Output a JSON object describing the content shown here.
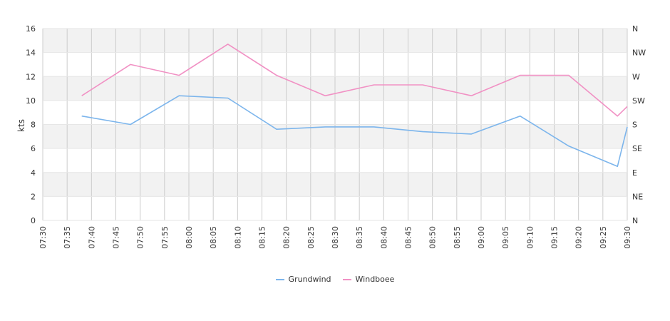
{
  "chart_data": {
    "type": "line",
    "ylabel": "kts",
    "ylim": [
      0,
      16
    ],
    "yticks": [
      "0",
      "2",
      "4",
      "6",
      "8",
      "10",
      "12",
      "14",
      "16"
    ],
    "y2ticks": [
      "N",
      "NE",
      "E",
      "SE",
      "S",
      "SW",
      "W",
      "NW",
      "N"
    ],
    "xticks": [
      "07:30",
      "07:35",
      "07:40",
      "07:45",
      "07:50",
      "07:55",
      "08:00",
      "08:05",
      "08:10",
      "08:15",
      "08:20",
      "08:25",
      "08:30",
      "08:35",
      "08:40",
      "08:45",
      "08:50",
      "08:55",
      "09:00",
      "09:05",
      "09:10",
      "09:15",
      "09:20",
      "09:25",
      "09:30"
    ],
    "xlim": [
      "07:30",
      "09:30"
    ],
    "grid": true,
    "legend_position": "bottom",
    "series": [
      {
        "name": "Grundwind",
        "color": "#7cb5ec",
        "x": [
          "07:38",
          "07:48",
          "07:58",
          "08:08",
          "08:18",
          "08:28",
          "08:38",
          "08:48",
          "08:58",
          "09:08",
          "09:18",
          "09:28",
          "09:30"
        ],
        "values": [
          8.7,
          8.0,
          10.4,
          10.2,
          7.6,
          7.8,
          7.8,
          7.4,
          7.2,
          8.7,
          6.2,
          4.5,
          7.8
        ]
      },
      {
        "name": "Windboee",
        "color": "#f191c4",
        "x": [
          "07:38",
          "07:48",
          "07:58",
          "08:08",
          "08:18",
          "08:28",
          "08:38",
          "08:48",
          "08:58",
          "09:08",
          "09:18",
          "09:28",
          "09:30"
        ],
        "values": [
          10.4,
          13.0,
          12.1,
          14.7,
          12.1,
          10.4,
          11.3,
          11.3,
          10.4,
          12.1,
          12.1,
          8.7,
          9.5
        ]
      }
    ]
  }
}
